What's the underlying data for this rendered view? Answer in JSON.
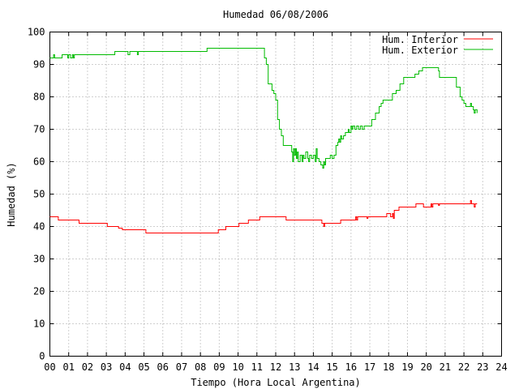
{
  "chart_data": {
    "type": "line",
    "title": "Humedad 06/08/2006",
    "xlabel": "Tiempo (Hora Local Argentina)",
    "ylabel": "Humedad (%)",
    "xlim": [
      0,
      24
    ],
    "ylim": [
      0,
      100
    ],
    "grid": true,
    "legend_position": "top-right",
    "x_ticks": [
      "00",
      "01",
      "02",
      "03",
      "04",
      "05",
      "06",
      "07",
      "08",
      "09",
      "10",
      "11",
      "12",
      "13",
      "14",
      "15",
      "16",
      "17",
      "18",
      "19",
      "20",
      "21",
      "22",
      "23",
      "24"
    ],
    "y_ticks": [
      "0",
      "10",
      "20",
      "30",
      "40",
      "50",
      "60",
      "70",
      "80",
      "90",
      "100"
    ],
    "series": [
      {
        "name": "Hum. Interior",
        "color": "#ff0000",
        "points": [
          [
            0,
            43
          ],
          [
            0.4,
            43
          ],
          [
            0.45,
            42
          ],
          [
            1.5,
            42
          ],
          [
            1.55,
            41
          ],
          [
            3.0,
            41
          ],
          [
            3.05,
            40
          ],
          [
            3.6,
            40
          ],
          [
            3.65,
            39.5
          ],
          [
            3.8,
            39.5
          ],
          [
            3.85,
            39
          ],
          [
            5.0,
            39
          ],
          [
            5.1,
            38
          ],
          [
            8.9,
            38
          ],
          [
            8.95,
            39
          ],
          [
            9.3,
            39
          ],
          [
            9.35,
            40
          ],
          [
            10.0,
            40
          ],
          [
            10.05,
            41
          ],
          [
            10.5,
            41
          ],
          [
            10.55,
            42
          ],
          [
            11.1,
            42
          ],
          [
            11.15,
            43
          ],
          [
            12.5,
            43
          ],
          [
            12.55,
            42
          ],
          [
            14.4,
            42
          ],
          [
            14.45,
            41
          ],
          [
            14.55,
            40
          ],
          [
            14.6,
            41
          ],
          [
            15.4,
            41
          ],
          [
            15.45,
            42
          ],
          [
            16.2,
            42
          ],
          [
            16.25,
            43
          ],
          [
            16.3,
            42
          ],
          [
            16.35,
            43
          ],
          [
            16.8,
            43
          ],
          [
            16.85,
            42.5
          ],
          [
            16.9,
            43
          ],
          [
            17.8,
            43
          ],
          [
            17.9,
            44
          ],
          [
            18.1,
            43
          ],
          [
            18.2,
            44
          ],
          [
            18.25,
            42.5
          ],
          [
            18.3,
            45
          ],
          [
            18.5,
            45
          ],
          [
            18.55,
            46
          ],
          [
            19.4,
            46
          ],
          [
            19.45,
            47
          ],
          [
            19.8,
            47
          ],
          [
            19.85,
            46
          ],
          [
            20.2,
            46
          ],
          [
            20.25,
            47
          ],
          [
            20.3,
            46
          ],
          [
            20.35,
            47
          ],
          [
            20.6,
            47
          ],
          [
            20.65,
            46.5
          ],
          [
            20.7,
            47
          ],
          [
            22.3,
            47
          ],
          [
            22.35,
            48
          ],
          [
            22.4,
            47
          ],
          [
            22.5,
            47
          ],
          [
            22.55,
            46
          ],
          [
            22.6,
            47
          ],
          [
            22.7,
            47
          ]
        ]
      },
      {
        "name": "Hum. Exterior",
        "color": "#00bb00",
        "points": [
          [
            0,
            92
          ],
          [
            0.15,
            92
          ],
          [
            0.2,
            93
          ],
          [
            0.25,
            92
          ],
          [
            0.6,
            92
          ],
          [
            0.65,
            93
          ],
          [
            0.9,
            93
          ],
          [
            0.95,
            92
          ],
          [
            1.0,
            93
          ],
          [
            1.1,
            92
          ],
          [
            1.2,
            93
          ],
          [
            1.25,
            92
          ],
          [
            1.3,
            93
          ],
          [
            3.4,
            93
          ],
          [
            3.45,
            94
          ],
          [
            4.1,
            94
          ],
          [
            4.15,
            93
          ],
          [
            4.25,
            94
          ],
          [
            4.6,
            94
          ],
          [
            4.65,
            93
          ],
          [
            4.7,
            94
          ],
          [
            8.3,
            94
          ],
          [
            8.35,
            95
          ],
          [
            11.3,
            95
          ],
          [
            11.4,
            92
          ],
          [
            11.5,
            90
          ],
          [
            11.6,
            84
          ],
          [
            11.75,
            84
          ],
          [
            11.8,
            82
          ],
          [
            11.9,
            81
          ],
          [
            12.0,
            79
          ],
          [
            12.1,
            73
          ],
          [
            12.2,
            70
          ],
          [
            12.3,
            68
          ],
          [
            12.4,
            65
          ],
          [
            12.8,
            65
          ],
          [
            12.85,
            63
          ],
          [
            12.9,
            60
          ],
          [
            12.95,
            64
          ],
          [
            13.0,
            62
          ],
          [
            13.05,
            64
          ],
          [
            13.1,
            61
          ],
          [
            13.15,
            63
          ],
          [
            13.2,
            60
          ],
          [
            13.3,
            62
          ],
          [
            13.4,
            60
          ],
          [
            13.45,
            62
          ],
          [
            13.5,
            61
          ],
          [
            13.6,
            63
          ],
          [
            13.7,
            61
          ],
          [
            13.75,
            60
          ],
          [
            13.8,
            62
          ],
          [
            13.9,
            61
          ],
          [
            14.0,
            62
          ],
          [
            14.1,
            60
          ],
          [
            14.15,
            64
          ],
          [
            14.2,
            61
          ],
          [
            14.3,
            60
          ],
          [
            14.4,
            59
          ],
          [
            14.5,
            58
          ],
          [
            14.55,
            60
          ],
          [
            14.6,
            59
          ],
          [
            14.65,
            61
          ],
          [
            14.8,
            61
          ],
          [
            14.9,
            62
          ],
          [
            15.0,
            61
          ],
          [
            15.1,
            62
          ],
          [
            15.2,
            65
          ],
          [
            15.3,
            66
          ],
          [
            15.35,
            67
          ],
          [
            15.4,
            66
          ],
          [
            15.45,
            68
          ],
          [
            15.5,
            67
          ],
          [
            15.6,
            68
          ],
          [
            15.7,
            69
          ],
          [
            15.8,
            69
          ],
          [
            15.85,
            70
          ],
          [
            15.9,
            69
          ],
          [
            16.0,
            71
          ],
          [
            16.05,
            70
          ],
          [
            16.1,
            71
          ],
          [
            16.2,
            70
          ],
          [
            16.3,
            71
          ],
          [
            16.4,
            70
          ],
          [
            16.5,
            71
          ],
          [
            16.6,
            70
          ],
          [
            16.7,
            71
          ],
          [
            17.0,
            71
          ],
          [
            17.1,
            73
          ],
          [
            17.3,
            75
          ],
          [
            17.5,
            77
          ],
          [
            17.6,
            78
          ],
          [
            17.7,
            79
          ],
          [
            18.1,
            79
          ],
          [
            18.2,
            81
          ],
          [
            18.4,
            82
          ],
          [
            18.6,
            84
          ],
          [
            18.8,
            86
          ],
          [
            19.3,
            86
          ],
          [
            19.4,
            87
          ],
          [
            19.6,
            88
          ],
          [
            19.8,
            89
          ],
          [
            20.6,
            89
          ],
          [
            20.65,
            88
          ],
          [
            20.7,
            86
          ],
          [
            21.4,
            86
          ],
          [
            21.6,
            83
          ],
          [
            21.8,
            80
          ],
          [
            21.9,
            79
          ],
          [
            22.0,
            78
          ],
          [
            22.1,
            77
          ],
          [
            22.3,
            77
          ],
          [
            22.35,
            78
          ],
          [
            22.4,
            77
          ],
          [
            22.5,
            76
          ],
          [
            22.55,
            75
          ],
          [
            22.6,
            76
          ],
          [
            22.7,
            75
          ]
        ]
      }
    ]
  }
}
